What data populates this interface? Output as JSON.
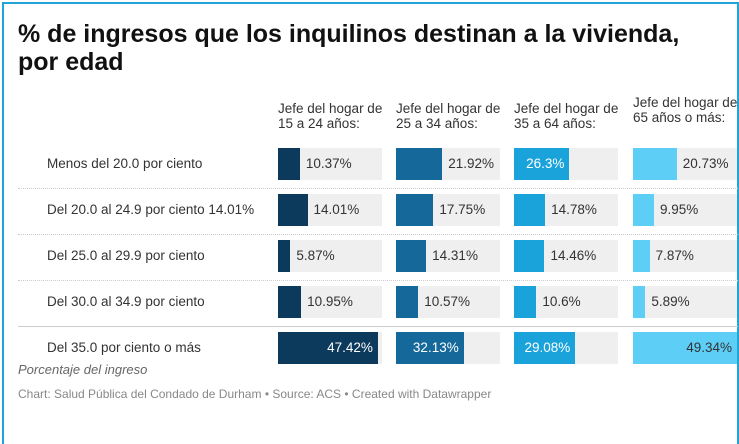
{
  "chart_data": {
    "type": "bar-table",
    "title": "% de ingresos que los inquilinos destinan a la vivienda, por edad",
    "categories": [
      "Menos del 20.0 por ciento",
      "Del 20.0 al 24.9 por ciento 14.01%",
      "Del 25.0 al 29.9 por ciento",
      "Del 30.0 al 34.9 por ciento",
      "Del 35.0 por ciento o más"
    ],
    "series": [
      {
        "name": "Jefe del hogar de 15 a 24 años:",
        "color": "#0c3a5c",
        "values": [
          10.37,
          14.01,
          5.87,
          10.95,
          47.42
        ],
        "value_labels": [
          "10.37%",
          "14.01%",
          "5.87%",
          "10.95%",
          "47.42%"
        ]
      },
      {
        "name": "Jefe del hogar de 25 a 34 años:",
        "color": "#15699a",
        "values": [
          21.92,
          17.75,
          14.31,
          10.57,
          32.13
        ],
        "value_labels": [
          "21.92%",
          "17.75%",
          "14.31%",
          "10.57%",
          "32.13%"
        ]
      },
      {
        "name": "Jefe del hogar de 35 a 64 años:",
        "color": "#1aa3da",
        "values": [
          26.3,
          14.78,
          14.46,
          10.6,
          29.08
        ],
        "value_labels": [
          "26.3%",
          "14.78%",
          "14.46%",
          "10.6%",
          "29.08%"
        ]
      },
      {
        "name": "Jefe del hogar de 65 años o más:",
        "color": "#5dcff7",
        "values": [
          20.73,
          9.95,
          7.87,
          5.89,
          49.34
        ],
        "value_labels": [
          "20.73%",
          "9.95%",
          "7.87%",
          "5.89%",
          "49.34%"
        ]
      }
    ],
    "notes": "Porcentaje del ingreso",
    "source": "Chart: Salud Pública del Condado de Durham • Source: ACS • Created with Datawrapper"
  }
}
